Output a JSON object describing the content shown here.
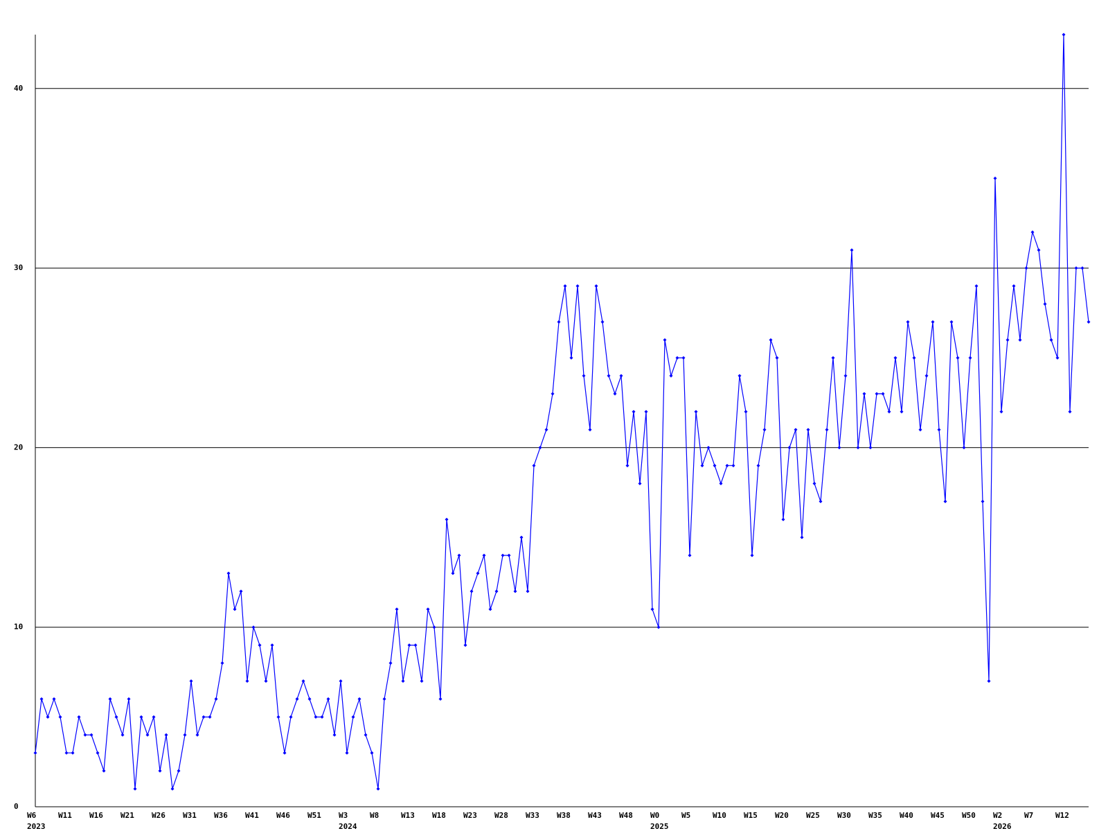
{
  "chart_data": {
    "type": "line",
    "categories": [
      "W6",
      null,
      null,
      null,
      null,
      "W11",
      null,
      null,
      null,
      null,
      "W16",
      null,
      null,
      null,
      null,
      "W21",
      null,
      null,
      null,
      null,
      "W26",
      null,
      null,
      null,
      null,
      "W31",
      null,
      null,
      null,
      null,
      "W36",
      null,
      null,
      null,
      null,
      "W41",
      null,
      null,
      null,
      null,
      "W46",
      null,
      null,
      null,
      null,
      "W51",
      null,
      null,
      null,
      null,
      "W3",
      null,
      null,
      null,
      null,
      "W8",
      null,
      null,
      null,
      null,
      "W13",
      null,
      null,
      null,
      null,
      "W18",
      null,
      null,
      null,
      null,
      "W23",
      null,
      null,
      null,
      null,
      "W28",
      null,
      null,
      null,
      null,
      "W33",
      null,
      null,
      null,
      null,
      "W38",
      null,
      null,
      null,
      null,
      "W43",
      null,
      null,
      null,
      null,
      "W48",
      null,
      null,
      null,
      null,
      "W0",
      null,
      null,
      null,
      null,
      "W5",
      null,
      null,
      null,
      null,
      "W10",
      null,
      null,
      null,
      null,
      "W15",
      null,
      null,
      null,
      null,
      "W20",
      null,
      null,
      null,
      null,
      "W25",
      null,
      null,
      null,
      null,
      "W30",
      null,
      null,
      null,
      null,
      "W35",
      null,
      null,
      null,
      null,
      "W40",
      null,
      null,
      null,
      null,
      "W45",
      null,
      null,
      null,
      null,
      "W50",
      null,
      null,
      null,
      null,
      "W2",
      null,
      null,
      null,
      null,
      "W7",
      null,
      null,
      null,
      null,
      "W12",
      null,
      null,
      null,
      null
    ],
    "year_labels": [
      "2023",
      null,
      null,
      null,
      null,
      null,
      null,
      null,
      null,
      null,
      null,
      null,
      null,
      null,
      null,
      null,
      null,
      null,
      null,
      null,
      null,
      null,
      null,
      null,
      null,
      null,
      null,
      null,
      null,
      null,
      null,
      null,
      null,
      null,
      null,
      null,
      null,
      null,
      null,
      null,
      null,
      null,
      null,
      null,
      null,
      null,
      null,
      null,
      null,
      null,
      "2024",
      null,
      null,
      null,
      null,
      null,
      null,
      null,
      null,
      null,
      null,
      null,
      null,
      null,
      null,
      null,
      null,
      null,
      null,
      null,
      null,
      null,
      null,
      null,
      null,
      null,
      null,
      null,
      null,
      null,
      null,
      null,
      null,
      null,
      null,
      null,
      null,
      null,
      null,
      null,
      null,
      null,
      null,
      null,
      null,
      null,
      null,
      null,
      null,
      null,
      "2025",
      null,
      null,
      null,
      null,
      null,
      null,
      null,
      null,
      null,
      null,
      null,
      null,
      null,
      null,
      null,
      null,
      null,
      null,
      null,
      null,
      null,
      null,
      null,
      null,
      null,
      null,
      null,
      null,
      null,
      null,
      null,
      null,
      null,
      null,
      null,
      null,
      null,
      null,
      null,
      null,
      null,
      null,
      null,
      null,
      null,
      null,
      null,
      null,
      null,
      null,
      null,
      null,
      null,
      null,
      "2026",
      null,
      null,
      null,
      null,
      null,
      null,
      null,
      null,
      null,
      null,
      null,
      null,
      null,
      null
    ],
    "series": [
      {
        "color": "#0000ff",
        "values": [
          3,
          6,
          5,
          6,
          5,
          3,
          3,
          5,
          4,
          4,
          3,
          2,
          6,
          5,
          4,
          6,
          1,
          5,
          4,
          5,
          2,
          4,
          1,
          2,
          4,
          7,
          4,
          5,
          5,
          6,
          8,
          13,
          11,
          12,
          7,
          10,
          9,
          7,
          9,
          5,
          3,
          5,
          6,
          7,
          6,
          5,
          5,
          6,
          4,
          7,
          3,
          5,
          6,
          4,
          3,
          1,
          6,
          8,
          11,
          7,
          9,
          9,
          7,
          11,
          10,
          6,
          16,
          13,
          14,
          9,
          12,
          13,
          14,
          11,
          12,
          14,
          14,
          12,
          15,
          12,
          19,
          20,
          21,
          23,
          27,
          29,
          25,
          29,
          24,
          21,
          29,
          27,
          24,
          23,
          24,
          19,
          22,
          18,
          22,
          11,
          10,
          26,
          24,
          25,
          25,
          14,
          22,
          19,
          20,
          19,
          18,
          19,
          19,
          24,
          22,
          14,
          19,
          21,
          26,
          25,
          16,
          20,
          21,
          15,
          21,
          18,
          17,
          21,
          25,
          20,
          24,
          31,
          20,
          23,
          20,
          23,
          23,
          22,
          25,
          22,
          27,
          25,
          21,
          24,
          27,
          21,
          17,
          27,
          25,
          20,
          25,
          29,
          17,
          7,
          35,
          22,
          26,
          29,
          26,
          30,
          32,
          31,
          28,
          26,
          25,
          43,
          22,
          30,
          30,
          27
        ]
      }
    ],
    "ylim": [
      0,
      43
    ],
    "yticks": [
      0,
      10,
      20,
      30,
      40
    ],
    "grid": true
  }
}
